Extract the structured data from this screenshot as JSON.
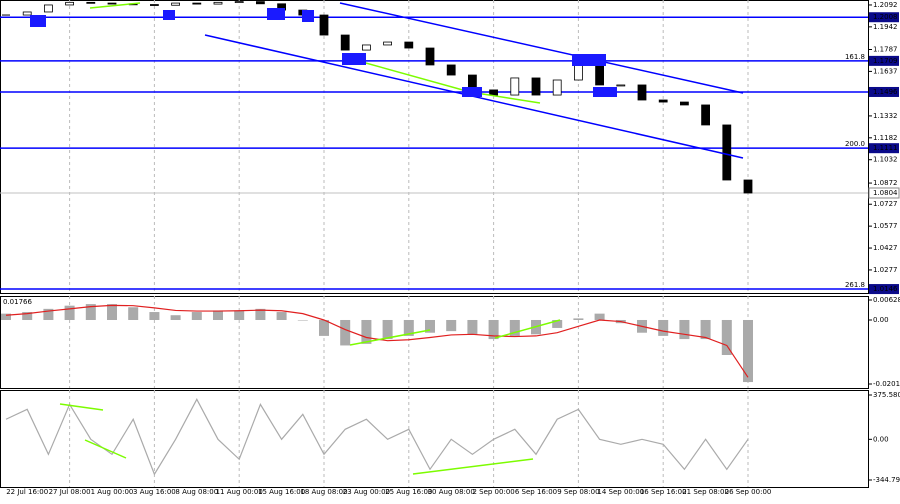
{
  "chart_data": [
    {
      "type": "candlestick",
      "categories": [
        null,
        "22 Jul 16:00",
        null,
        "27 Jul 08:00",
        null,
        "1 Aug 00:00",
        null,
        "3 Aug 16:00",
        null,
        "8 Aug 08:00",
        null,
        "11 Aug 00:00",
        null,
        "15 Aug 16:00",
        null,
        "18 Aug 08:00",
        null,
        "23 Aug 00:00",
        null,
        "25 Aug 16:00",
        null,
        "30 Aug 08:00",
        null,
        "2 Sep 00:00",
        null,
        "6 Sep 16:00",
        null,
        "9 Sep 08:00",
        null,
        "14 Sep 00:00",
        null,
        "16 Sep 16:00",
        null,
        "21 Sep 08:00",
        null,
        "26 Sep 00:00"
      ],
      "values": [
        1.2023,
        1.2044,
        1.2092,
        1.211,
        1.2105,
        1.21,
        1.2095,
        1.209,
        1.2105,
        1.2098,
        1.211,
        1.2115,
        1.21,
        1.2057,
        1.2023,
        1.1886,
        1.1783,
        1.1818,
        1.1838,
        1.1797,
        1.1681,
        1.1612,
        1.151,
        1.1475,
        1.1592,
        1.1475,
        1.1578,
        1.1701,
        1.1544,
        1.1544,
        1.1441,
        1.1427,
        1.1407,
        1.127,
        1.0893,
        1.0804
      ],
      "ylim": [
        1.0119,
        1.2126
      ],
      "yticks": [
        1.2092,
        1.1942,
        1.1787,
        1.1637,
        1.1482,
        1.1332,
        1.1182,
        1.1032,
        1.0872,
        1.0727,
        1.0577,
        1.0427,
        1.0277
      ],
      "levels": [
        1.2008,
        1.1709,
        1.1496,
        1.1111,
        1.0146
      ],
      "fib_labels": [
        {
          "value": 1.1709,
          "label": "161.8"
        },
        {
          "value": 1.1111,
          "label": "200.0"
        },
        {
          "value": 1.0146,
          "label": "261.8"
        }
      ],
      "last_price": 1.0804
    },
    {
      "type": "macd",
      "label": "0.01766",
      "values": [
        0.002,
        0.0025,
        0.0035,
        0.0045,
        0.005,
        0.005,
        0.004,
        0.0025,
        0.0015,
        0.0025,
        0.003,
        0.003,
        0.0035,
        0.0025,
        0.0,
        -0.005,
        -0.008,
        -0.0075,
        -0.006,
        -0.005,
        -0.004,
        -0.0035,
        -0.0045,
        -0.006,
        -0.005,
        -0.0045,
        -0.0025,
        0.0005,
        0.002,
        -0.001,
        -0.004,
        -0.005,
        -0.006,
        -0.006,
        -0.011,
        -0.0195
      ],
      "signal": [
        0.0015,
        0.002,
        0.0028,
        0.0035,
        0.0042,
        0.0046,
        0.0045,
        0.0038,
        0.003,
        0.0028,
        0.0028,
        0.0029,
        0.0031,
        0.0029,
        0.002,
        0.0,
        -0.003,
        -0.0055,
        -0.0065,
        -0.0062,
        -0.0055,
        -0.0047,
        -0.0045,
        -0.005,
        -0.0052,
        -0.005,
        -0.004,
        -0.002,
        0.0,
        -0.0005,
        -0.002,
        -0.0035,
        -0.0045,
        -0.0055,
        -0.008,
        -0.018
      ],
      "color": "#aaaaaa",
      "signal_color": "#e02020",
      "ylim": [
        -0.02137,
        0.00754
      ],
      "yticks": [
        0.00628,
        {
          "value": 0,
          "label": "0.00"
        },
        -0.02011
      ]
    },
    {
      "type": "line",
      "values": [
        170,
        254,
        -127,
        296,
        0,
        -127,
        170,
        -296,
        0,
        339,
        0,
        -169,
        296,
        0,
        212,
        -127,
        85,
        170,
        0,
        85,
        -254,
        0,
        -127,
        0,
        85,
        -127,
        170,
        254,
        0,
        -42,
        0,
        -42,
        -254,
        0,
        -254,
        0
      ],
      "color": "#aaaaaa",
      "ylim": [
        -404.1,
        418.0
      ],
      "yticks": [
        375.5808,
        {
          "value": 0,
          "label": "0.00"
        },
        -344.798
      ]
    }
  ]
}
